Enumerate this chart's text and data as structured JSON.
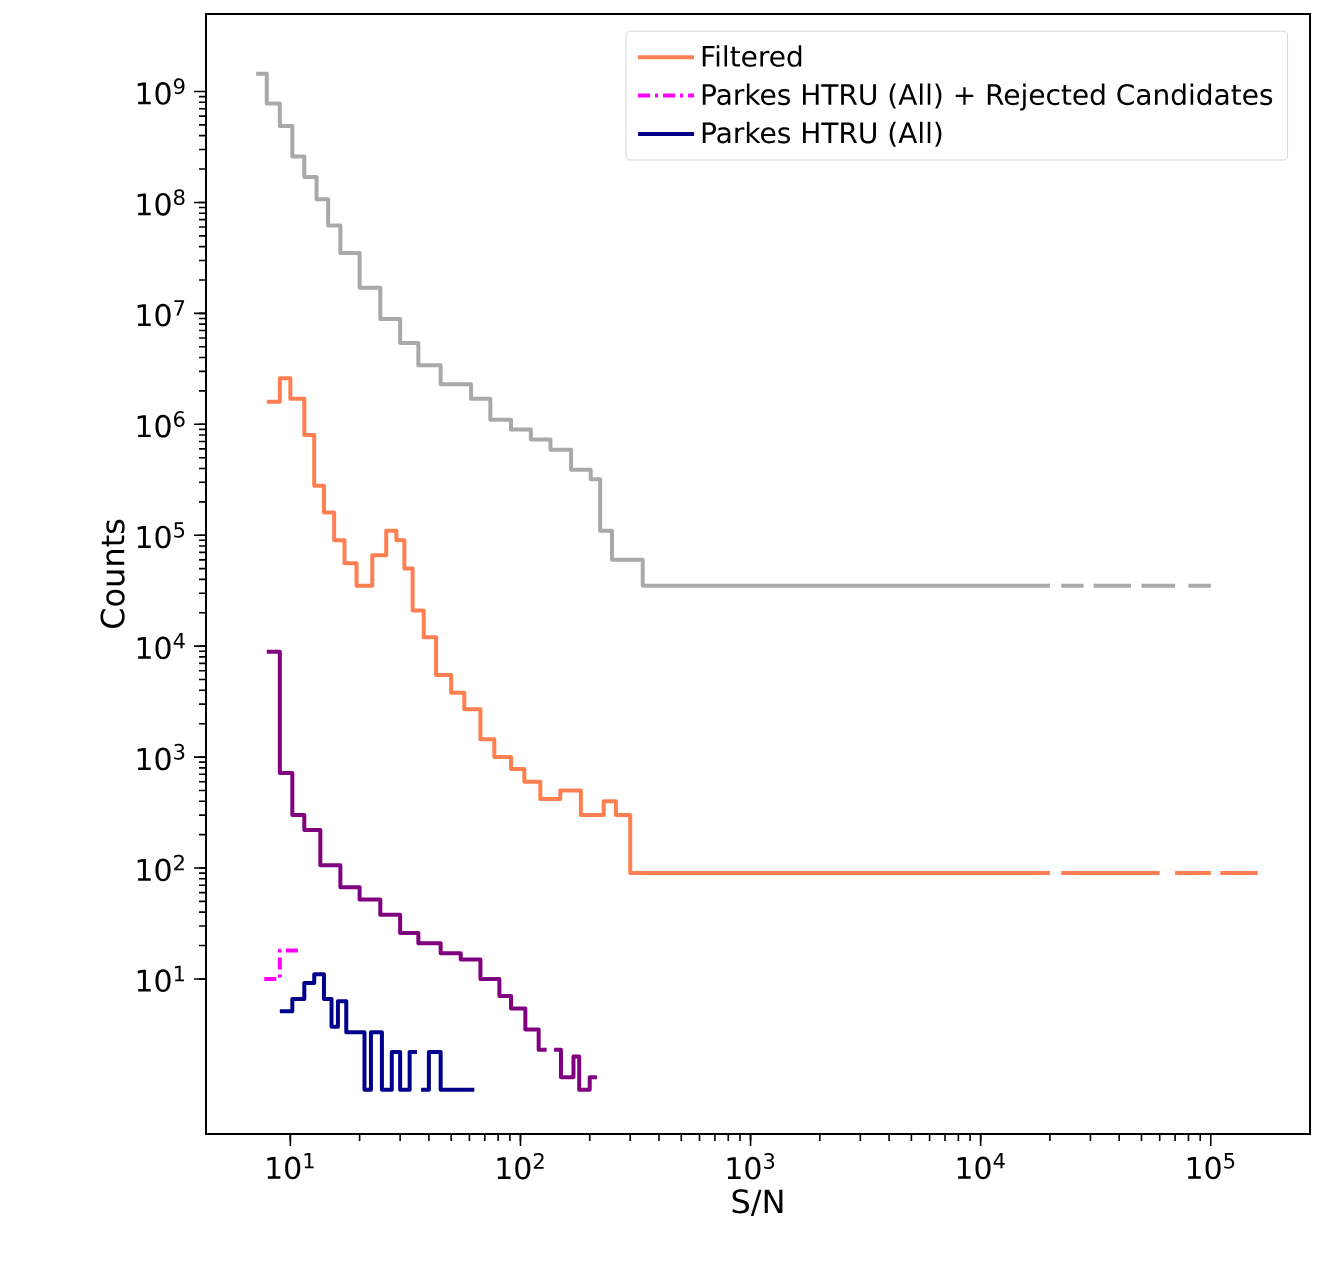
{
  "chart_data": {
    "type": "step",
    "xlabel": "S/N",
    "ylabel": "Counts",
    "log": "xy",
    "legend": "top right",
    "xlim": [
      4.3,
      270000
    ],
    "ylim": [
      0.4,
      5000000000
    ],
    "xticks": [
      {
        "value": 10,
        "label": "10$^{1}$"
      },
      {
        "value": 100,
        "label": "10$^{2}$"
      },
      {
        "value": 1000,
        "label": "10$^{3}$"
      },
      {
        "value": 10000,
        "label": "10$^{4}$"
      },
      {
        "value": 100000,
        "label": "10$^{5}$"
      }
    ],
    "yticks": [
      {
        "value": 10,
        "label": "10$^{1}$"
      },
      {
        "value": 100,
        "label": "10$^{2}$"
      },
      {
        "value": 1000,
        "label": "10$^{3}$"
      },
      {
        "value": 10000,
        "label": "10$^{4}$"
      },
      {
        "value": 100000,
        "label": "10$^{5}$"
      },
      {
        "value": 1000000,
        "label": "10$^{6}$"
      },
      {
        "value": 10000000,
        "label": "10$^{7}$"
      },
      {
        "value": 100000000,
        "label": "10$^{8}$"
      },
      {
        "value": 1000000000,
        "label": "10$^{9}$"
      }
    ],
    "series": [
      {
        "color": "#a9a9a9",
        "x": [
          7.1,
          7.9,
          9.0,
          10.2,
          11.5,
          13,
          14.6,
          16.5,
          20,
          24.6,
          30,
          36,
          45,
          61,
          74,
          91,
          111,
          135,
          166,
          202,
          222,
          250,
          320,
          340,
          20000,
          21000,
          22400,
          28000,
          29500,
          31000,
          45000,
          47500,
          50000,
          70000,
          75000,
          80000,
          100000
        ],
        "values": [
          1450000000,
          780000000,
          490000000,
          260000000,
          170000000,
          107000000,
          62000000,
          35000000,
          17000000,
          8900000,
          5400000,
          3400000,
          2300000,
          1700000,
          1100000,
          900000,
          730000,
          590000,
          390000,
          320000,
          110000,
          60000,
          60000,
          35000,
          35000,
          null,
          35000,
          35000,
          null,
          35000,
          35000,
          null,
          35000,
          35000,
          null,
          35000,
          35000
        ]
      },
      {
        "name": "Filtered",
        "color": "#ff7f50",
        "x": [
          7.9,
          9.0,
          10,
          11.5,
          12.7,
          14,
          15.5,
          17.2,
          19.4,
          22.7,
          26.1,
          28.9,
          31.3,
          34,
          38,
          43,
          50,
          57,
          67,
          77,
          91,
          104,
          122,
          149,
          183,
          230,
          260,
          300,
          20000,
          21000,
          22400,
          60000,
          65000,
          70000,
          100000,
          105000,
          110000,
          160000
        ],
        "values": [
          1600000,
          2600000,
          1700000,
          800000,
          280000,
          160000,
          90000,
          56000,
          35000,
          66000,
          110000,
          90000,
          50000,
          21000,
          12000,
          5500,
          3800,
          2700,
          1450,
          1000,
          780,
          600,
          420,
          500,
          300,
          400,
          300,
          90,
          90,
          null,
          90,
          90,
          null,
          90,
          90,
          null,
          90,
          90
        ]
      },
      {
        "color": "#800080",
        "x": [
          7.9,
          9.0,
          10.2,
          11.5,
          13.5,
          16.5,
          20,
          24.6,
          30,
          36,
          45,
          55,
          67,
          81,
          91,
          105,
          120,
          130,
          135,
          140,
          150,
          170,
          180,
          200,
          215
        ],
        "values": [
          8900,
          720,
          300,
          220,
          106,
          67,
          52,
          38,
          26,
          21,
          17,
          15,
          10,
          7,
          5.4,
          3.5,
          2.3,
          2.3,
          null,
          2.3,
          1.3,
          2,
          1,
          1.3,
          1.3
        ]
      },
      {
        "name": "Parkes HTRU (All) + Rejected Candidates",
        "color": "#ff00ff",
        "line_style": "dashdot",
        "x": [
          7.7,
          9.0,
          11.3
        ],
        "values": [
          10,
          18,
          18
        ]
      },
      {
        "name": "Parkes HTRU (All)",
        "color": "#00008b",
        "x": [
          9.0,
          10.2,
          11.5,
          12.7,
          14,
          15.1,
          16.1,
          17.5,
          19.0,
          21,
          22.4,
          25,
          27.6,
          30,
          33,
          35.5,
          36,
          37,
          40,
          45,
          63
        ],
        "values": [
          5.1,
          6.6,
          9.2,
          11,
          6.6,
          3.7,
          6.3,
          3.3,
          3.3,
          1,
          3.3,
          1,
          2.2,
          1,
          2.2,
          2.2,
          null,
          1,
          2.2,
          1,
          1
        ]
      }
    ]
  }
}
